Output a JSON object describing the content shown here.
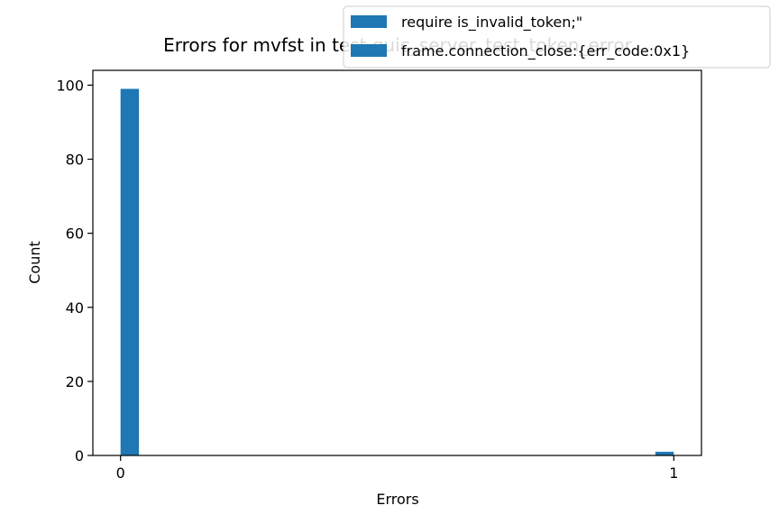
{
  "chart_data": {
    "type": "bar",
    "title": "Errors for mvfst in test quic_server_test_token_error",
    "xlabel": "Errors",
    "ylabel": "Count",
    "xlim": [
      -0.05,
      1.05
    ],
    "ylim": [
      0,
      104
    ],
    "x_ticks": [
      0,
      1
    ],
    "y_ticks": [
      0,
      20,
      40,
      60,
      80,
      100
    ],
    "series": [
      {
        "name": "require is_invalid_token;\"",
        "bins": [
          {
            "x0": 0.0,
            "x1": 0.0333,
            "count": 99
          },
          {
            "x0": 0.9667,
            "x1": 1.0,
            "count": 1
          }
        ]
      },
      {
        "name": "frame.connection_close:{err_code:0x1}",
        "bins": []
      }
    ],
    "legend_position": "top-right",
    "colors": {
      "bar": "#1f77b4",
      "legend_edge": "#cccccc"
    },
    "grid": false
  }
}
